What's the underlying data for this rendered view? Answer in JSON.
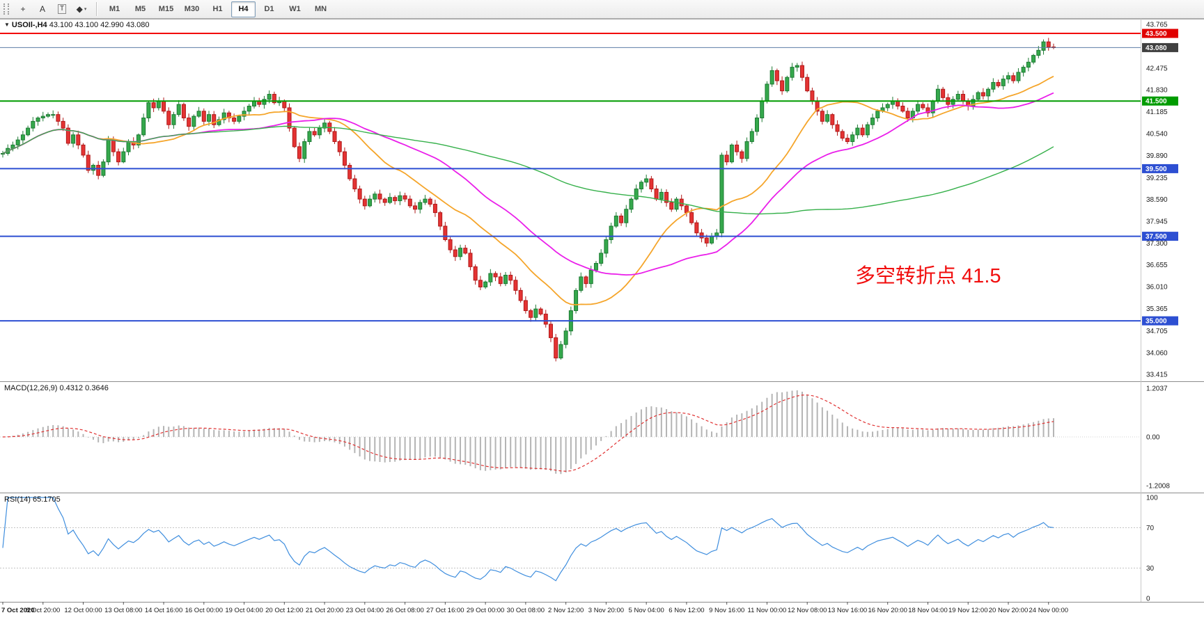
{
  "toolbar": {
    "caret_glyph": "▾",
    "tools": [
      {
        "name": "cursor-tool",
        "glyph": "+"
      },
      {
        "name": "text-tool",
        "glyph": "A"
      },
      {
        "name": "frame-label-tool",
        "glyph": "T",
        "boxed": true
      },
      {
        "name": "shapes-tool",
        "glyph": "◆",
        "has_caret": true
      }
    ],
    "timeframes": [
      "M1",
      "M5",
      "M15",
      "M30",
      "H1",
      "H4",
      "D1",
      "W1",
      "MN"
    ],
    "active_timeframe": "H4"
  },
  "chart": {
    "header": {
      "collapse_glyph": "▼",
      "symbol": "USOIl-,H4",
      "ohlc": "43.100 43.100 42.990 43.080"
    },
    "annotation": {
      "text": "多空转折点 41.5",
      "color": "#f10d0d"
    },
    "colors": {
      "up": "#35a84c",
      "up_border": "#1d7a33",
      "down": "#e43333",
      "down_border": "#b01919",
      "macd_hist": "#b4b4b4",
      "macd_signal": "#e03030",
      "rsi_line": "#3f8ede",
      "level_line": "#c4c4c4",
      "axis_text": "#1a1a1a",
      "separator": "#8c8c8c"
    }
  },
  "indicators": {
    "macd_label": {
      "name": "MACD(12,26,9)",
      "values": "0.4312 0.3646"
    },
    "rsi_label": {
      "name": "RSI(14)",
      "values": "65.1705"
    }
  },
  "chart_data": {
    "type": "candlestick",
    "symbol": "USOIl-",
    "timeframe": "H4",
    "title": "USOIl-,H4",
    "closes": [
      39.95,
      40.1,
      40.2,
      40.35,
      40.5,
      40.7,
      40.9,
      41.0,
      41.05,
      41.1,
      41.1,
      40.9,
      40.7,
      40.25,
      40.5,
      40.2,
      39.9,
      39.45,
      39.6,
      39.3,
      39.7,
      40.35,
      40.0,
      39.7,
      40.0,
      40.3,
      40.2,
      40.5,
      41.0,
      41.45,
      41.3,
      41.5,
      41.2,
      40.8,
      41.1,
      41.4,
      41.0,
      40.75,
      41.05,
      41.2,
      40.9,
      41.1,
      40.8,
      40.95,
      41.15,
      41.0,
      40.9,
      41.05,
      41.2,
      41.35,
      41.5,
      41.4,
      41.55,
      41.7,
      41.45,
      41.5,
      41.3,
      40.7,
      40.15,
      39.8,
      40.3,
      40.6,
      40.5,
      40.7,
      40.85,
      40.6,
      40.3,
      40.0,
      39.6,
      39.2,
      38.9,
      38.6,
      38.4,
      38.6,
      38.75,
      38.6,
      38.5,
      38.65,
      38.55,
      38.7,
      38.6,
      38.4,
      38.3,
      38.5,
      38.6,
      38.45,
      38.2,
      37.8,
      37.4,
      37.1,
      36.9,
      37.15,
      37.0,
      36.6,
      36.2,
      36.0,
      36.15,
      36.4,
      36.3,
      36.1,
      36.35,
      36.2,
      35.9,
      35.6,
      35.3,
      35.1,
      35.35,
      35.2,
      34.9,
      34.5,
      33.9,
      34.3,
      34.7,
      35.3,
      35.9,
      36.3,
      36.1,
      36.5,
      36.7,
      37.0,
      37.4,
      37.8,
      38.1,
      37.9,
      38.3,
      38.6,
      38.9,
      39.1,
      39.2,
      38.9,
      38.6,
      38.8,
      38.5,
      38.3,
      38.6,
      38.4,
      38.2,
      37.9,
      37.6,
      37.45,
      37.3,
      37.5,
      37.6,
      39.9,
      39.7,
      40.2,
      40.0,
      39.8,
      40.3,
      40.6,
      41.0,
      41.5,
      42.0,
      42.4,
      42.1,
      41.8,
      42.2,
      42.5,
      42.55,
      42.2,
      41.8,
      41.5,
      41.2,
      40.9,
      41.1,
      40.8,
      40.6,
      40.4,
      40.3,
      40.5,
      40.7,
      40.5,
      40.8,
      41.0,
      41.2,
      41.3,
      41.4,
      41.5,
      41.35,
      41.2,
      41.0,
      41.2,
      41.4,
      41.3,
      41.15,
      41.5,
      41.85,
      41.6,
      41.4,
      41.55,
      41.7,
      41.5,
      41.35,
      41.55,
      41.75,
      41.65,
      41.85,
      42.05,
      41.95,
      42.15,
      42.25,
      42.1,
      42.35,
      42.5,
      42.65,
      42.85,
      43.0,
      43.25,
      43.1,
      43.08
    ],
    "bars_per_x_label": 8,
    "x_labels": [
      "7 Oct 2020",
      "8 Oct 20:00",
      "12 Oct 00:00",
      "13 Oct 08:00",
      "14 Oct 16:00",
      "16 Oct 00:00",
      "19 Oct 04:00",
      "20 Oct 12:00",
      "21 Oct 20:00",
      "23 Oct 04:00",
      "26 Oct 08:00",
      "27 Oct 16:00",
      "29 Oct 00:00",
      "30 Oct 08:00",
      "2 Nov 12:00",
      "3 Nov 20:00",
      "5 Nov 04:00",
      "6 Nov 12:00",
      "9 Nov 16:00",
      "11 Nov 00:00",
      "12 Nov 08:00",
      "13 Nov 16:00",
      "16 Nov 20:00",
      "18 Nov 04:00",
      "19 Nov 12:00",
      "20 Nov 20:00",
      "24 Nov 00:00"
    ],
    "y_ticks": [
      "43.765",
      "42.475",
      "41.830",
      "41.185",
      "40.540",
      "39.890",
      "39.235",
      "38.590",
      "37.945",
      "37.300",
      "36.655",
      "36.010",
      "35.365",
      "34.705",
      "34.060",
      "33.415"
    ],
    "horizontal_lines": [
      {
        "price": 43.5,
        "label": "43.500",
        "color": "#f20000",
        "label_bg": "#e00000",
        "width": 2
      },
      {
        "price": 43.08,
        "label": "43.080",
        "color": "#5c7ca6",
        "label_bg": "#404040",
        "width": 1
      },
      {
        "price": 41.5,
        "label": "41.500",
        "color": "#009b00",
        "label_bg": "#009b00",
        "width": 2
      },
      {
        "price": 39.5,
        "label": "39.500",
        "color": "#2d4fd2",
        "label_bg": "#2d4fd2",
        "width": 2
      },
      {
        "price": 37.5,
        "label": "37.500",
        "color": "#2d4fd2",
        "label_bg": "#2d4fd2",
        "width": 2
      },
      {
        "price": 35.0,
        "label": "35.000",
        "color": "#2d4fd2",
        "label_bg": "#2d4fd2",
        "width": 2
      }
    ],
    "moving_averages": [
      {
        "name": "ma-fast",
        "period": 20,
        "color": "#f5a52a",
        "width": 1.8
      },
      {
        "name": "ma-mid",
        "period": 40,
        "color": "#ea1fea",
        "width": 1.8
      },
      {
        "name": "ma-slow",
        "period": 100,
        "color": "#35b04a",
        "width": 1.4
      }
    ],
    "macd": {
      "fast": 12,
      "slow": 26,
      "signal_period": 9,
      "current_macd": 0.4312,
      "current_signal": 0.3646,
      "scale_labels": [
        "1.2037",
        "0.00",
        "-1.2008"
      ],
      "scale_max": 1.2037,
      "scale_min": -1.2008
    },
    "rsi": {
      "period": 14,
      "current": 65.1705,
      "levels": [
        70,
        30
      ],
      "scale_labels": [
        "100",
        "70",
        "30",
        "0"
      ],
      "scale": [
        0,
        100
      ]
    }
  }
}
